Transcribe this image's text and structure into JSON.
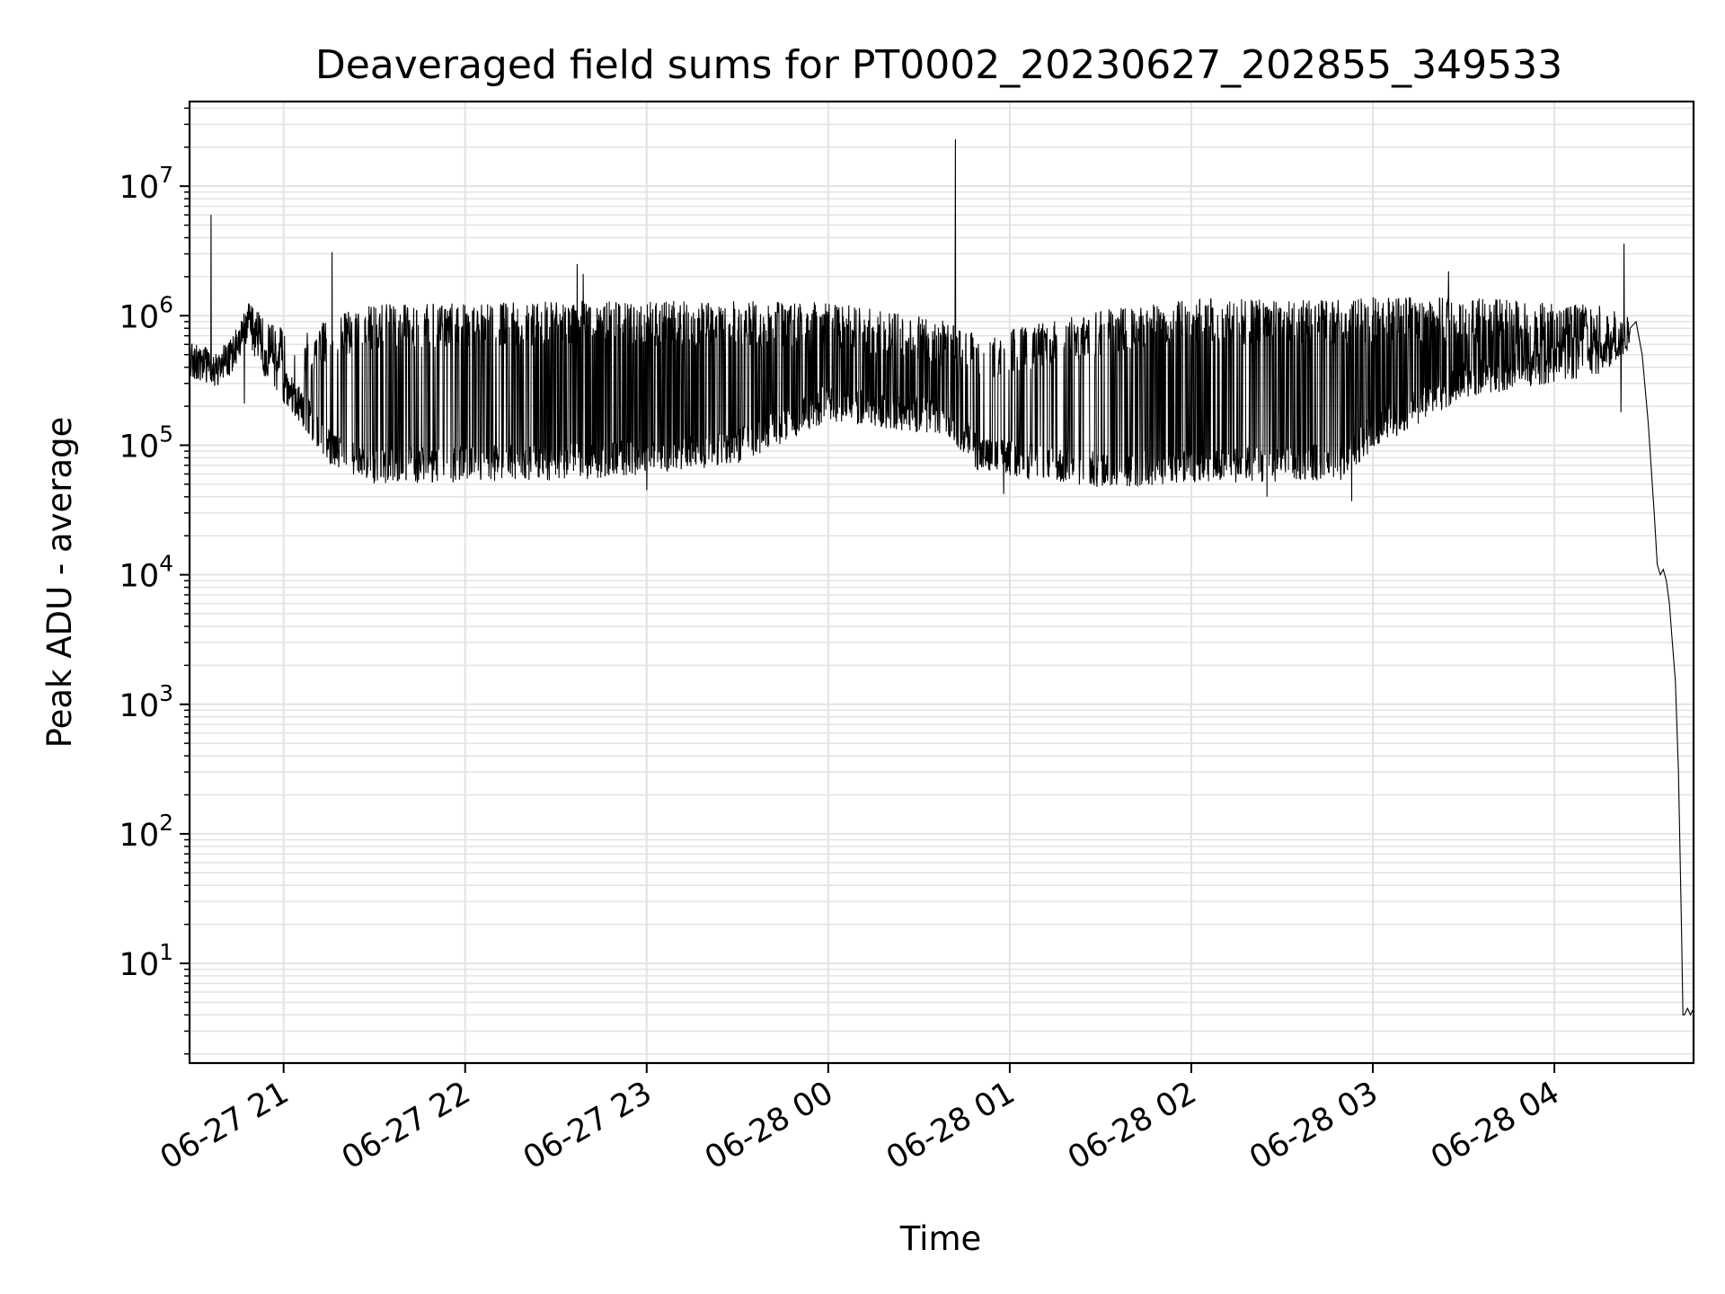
{
  "chart_data": {
    "type": "line",
    "title": "Deaveraged field sums for PT0002_20230627_202855_349533",
    "xlabel": "Time",
    "ylabel": "Peak ADU - average",
    "yscale": "log",
    "grid": "on",
    "legend": "none",
    "line_color": "#000000",
    "grid_color": "#e3e3e3",
    "xlim": [
      "2023-06-27 20:28:55",
      "2023-06-28 04:46:00"
    ],
    "ylim": [
      1.7,
      45000000
    ],
    "x_ticks": [
      {
        "value": "2023-06-27 21:00",
        "label": "06-27 21"
      },
      {
        "value": "2023-06-27 22:00",
        "label": "06-27 22"
      },
      {
        "value": "2023-06-27 23:00",
        "label": "06-27 23"
      },
      {
        "value": "2023-06-28 00:00",
        "label": "06-28 00"
      },
      {
        "value": "2023-06-28 01:00",
        "label": "06-28 01"
      },
      {
        "value": "2023-06-28 02:00",
        "label": "06-28 02"
      },
      {
        "value": "2023-06-28 03:00",
        "label": "06-28 03"
      },
      {
        "value": "2023-06-28 04:00",
        "label": "06-28 04"
      }
    ],
    "y_ticks": [
      {
        "value": 10,
        "base": "10",
        "exp": "1"
      },
      {
        "value": 100,
        "base": "10",
        "exp": "2"
      },
      {
        "value": 1000,
        "base": "10",
        "exp": "3"
      },
      {
        "value": 10000,
        "base": "10",
        "exp": "4"
      },
      {
        "value": 100000,
        "base": "10",
        "exp": "5"
      },
      {
        "value": 1000000,
        "base": "10",
        "exp": "6"
      },
      {
        "value": 10000000,
        "base": "10",
        "exp": "7"
      }
    ],
    "series": [
      {
        "profile": [
          {
            "x": "2023-06-27 20:28:55",
            "floor": 420000,
            "top": 520000,
            "spike": 0.05
          },
          {
            "x": "2023-06-27 20:35",
            "floor": 390000,
            "top": 560000,
            "spike": 0.05
          },
          {
            "x": "2023-06-27 20:42",
            "floor": 430000,
            "top": 520000,
            "spike": 0.05
          },
          {
            "x": "2023-06-27 20:48",
            "floor": 800000,
            "top": 1300000,
            "spike": 0.1
          },
          {
            "x": "2023-06-27 20:55",
            "floor": 380000,
            "top": 900000,
            "spike": 0.2
          },
          {
            "x": "2023-06-27 21:05",
            "floor": 200000,
            "top": 700000,
            "spike": 0.25
          },
          {
            "x": "2023-06-27 21:15",
            "floor": 90000,
            "top": 1000000,
            "spike": 0.3
          },
          {
            "x": "2023-06-27 21:30",
            "floor": 65000,
            "top": 1250000,
            "spike": 0.4
          },
          {
            "x": "2023-06-27 22:40",
            "floor": 70000,
            "top": 1300000,
            "spike": 0.75
          },
          {
            "x": "2023-06-27 23:30",
            "floor": 90000,
            "top": 1300000,
            "spike": 0.75
          },
          {
            "x": "2023-06-28 00:00",
            "floor": 200000,
            "top": 1300000,
            "spike": 0.75
          },
          {
            "x": "2023-06-28 00:40",
            "floor": 150000,
            "top": 900000,
            "spike": 0.55
          },
          {
            "x": "2023-06-28 00:50",
            "floor": 80000,
            "top": 700000,
            "spike": 0.35
          },
          {
            "x": "2023-06-28 01:30",
            "floor": 60000,
            "top": 1100000,
            "spike": 0.3
          },
          {
            "x": "2023-06-28 02:00",
            "floor": 65000,
            "top": 1350000,
            "spike": 0.6
          },
          {
            "x": "2023-06-28 02:50",
            "floor": 70000,
            "top": 1350000,
            "spike": 0.65
          },
          {
            "x": "2023-06-28 03:00",
            "floor": 120000,
            "top": 1400000,
            "spike": 0.75
          },
          {
            "x": "2023-06-28 03:30",
            "floor": 300000,
            "top": 1400000,
            "spike": 0.75
          },
          {
            "x": "2023-06-28 04:15",
            "floor": 450000,
            "top": 1200000,
            "spike": 0.5
          },
          {
            "x": "2023-06-28 04:25",
            "floor": 700000,
            "top": 1000000,
            "spike": 0.1
          }
        ],
        "decay": [
          {
            "x": "2023-06-28 04:25",
            "y": 800000
          },
          {
            "x": "2023-06-28 04:27",
            "y": 900000
          },
          {
            "x": "2023-06-28 04:29",
            "y": 500000
          },
          {
            "x": "2023-06-28 04:31",
            "y": 150000
          },
          {
            "x": "2023-06-28 04:33",
            "y": 30000
          },
          {
            "x": "2023-06-28 04:34",
            "y": 12000
          },
          {
            "x": "2023-06-28 04:35",
            "y": 10000
          },
          {
            "x": "2023-06-28 04:36",
            "y": 11000
          },
          {
            "x": "2023-06-28 04:37",
            "y": 9000
          },
          {
            "x": "2023-06-28 04:38",
            "y": 6000
          },
          {
            "x": "2023-06-28 04:39",
            "y": 3000
          },
          {
            "x": "2023-06-28 04:40",
            "y": 1500
          },
          {
            "x": "2023-06-28 04:41",
            "y": 300
          },
          {
            "x": "2023-06-28 04:42",
            "y": 20
          },
          {
            "x": "2023-06-28 04:42:30",
            "y": 4
          },
          {
            "x": "2023-06-28 04:43",
            "y": 4
          },
          {
            "x": "2023-06-28 04:44",
            "y": 4.5
          },
          {
            "x": "2023-06-28 04:45",
            "y": 4
          },
          {
            "x": "2023-06-28 04:46",
            "y": 4.5
          }
        ],
        "spikes": [
          {
            "x": "2023-06-27 20:36",
            "y": 6000000
          },
          {
            "x": "2023-06-27 21:16",
            "y": 3100000
          },
          {
            "x": "2023-06-27 22:37",
            "y": 2500000
          },
          {
            "x": "2023-06-27 22:39",
            "y": 2100000
          },
          {
            "x": "2023-06-28 00:42",
            "y": 23000000
          },
          {
            "x": "2023-06-28 03:25",
            "y": 2200000
          },
          {
            "x": "2023-06-28 04:23",
            "y": 3600000
          }
        ],
        "dips": [
          {
            "x": "2023-06-27 20:47",
            "y": 210000
          },
          {
            "x": "2023-06-27 23:00",
            "y": 45000
          },
          {
            "x": "2023-06-28 00:58",
            "y": 42000
          },
          {
            "x": "2023-06-28 02:25",
            "y": 40000
          },
          {
            "x": "2023-06-28 02:53",
            "y": 37000
          },
          {
            "x": "2023-06-28 04:22",
            "y": 180000
          }
        ]
      }
    ]
  }
}
